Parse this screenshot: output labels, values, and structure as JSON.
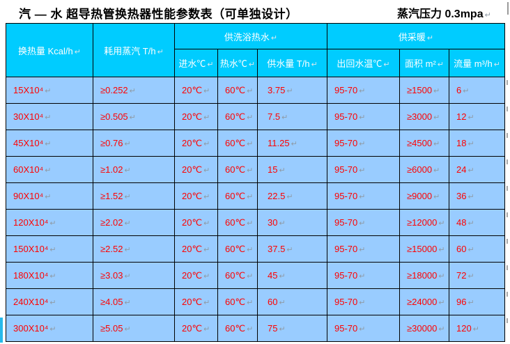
{
  "page": {
    "title_left": "汽 — 水 超导热管换热器性能参数表（可单独设计）",
    "title_right": "蒸汽压力 0.3mpa"
  },
  "marks": {
    "paragraph": "↵"
  },
  "colors": {
    "header_bg": "#00CCFF",
    "row_bg": "#99CCFF",
    "data_text": "#FF0000",
    "header_text": "#FFFFFF",
    "border": "#000000",
    "title_text": "#000000"
  },
  "table": {
    "header": {
      "heat": "换热量 Kcal/h",
      "steam": "耗用蒸汽 T/h",
      "group_bath": "供洗浴热水",
      "group_heating": "供采暖",
      "sub": [
        "进水℃",
        "热水℃",
        "供水量 T/h",
        "出回水温℃",
        "面积 m²",
        "流量 m³/h"
      ]
    },
    "rows": [
      {
        "heat": "15X10⁴",
        "steam": "≥0.252",
        "inlet": "20℃",
        "hot": "60℃",
        "supply": "3.75",
        "return_temp": "95-70",
        "area": "≥1500",
        "flow": "6"
      },
      {
        "heat": "30X10⁴",
        "steam": "≥0.505",
        "inlet": "20℃",
        "hot": "60℃",
        "supply": "7.5",
        "return_temp": "95-70",
        "area": "≥3000",
        "flow": "12"
      },
      {
        "heat": "45X10⁴",
        "steam": "≥0.76",
        "inlet": "20℃",
        "hot": "60℃",
        "supply": "11.25",
        "return_temp": "95-70",
        "area": "≥4500",
        "flow": "18"
      },
      {
        "heat": "60X10⁴",
        "steam": "≥1.02",
        "inlet": "20℃",
        "hot": "60℃",
        "supply": "15",
        "return_temp": "95-70",
        "area": "≥6000",
        "flow": "24"
      },
      {
        "heat": "90X10⁴",
        "steam": "≥1.52",
        "inlet": "20℃",
        "hot": "60℃",
        "supply": "22.5",
        "return_temp": "95-70",
        "area": "≥9000",
        "flow": "36"
      },
      {
        "heat": "120X10⁴",
        "steam": "≥2.02",
        "inlet": "20℃",
        "hot": "60℃",
        "supply": "30",
        "return_temp": "95-70",
        "area": "≥12000",
        "flow": "48"
      },
      {
        "heat": "150X10⁴",
        "steam": "≥2.52",
        "inlet": "20℃",
        "hot": "60℃",
        "supply": "37.5",
        "return_temp": "95-70",
        "area": "≥15000",
        "flow": "60"
      },
      {
        "heat": "180X10⁴",
        "steam": "≥3.03",
        "inlet": "20℃",
        "hot": "60℃",
        "supply": "45",
        "return_temp": "95-70",
        "area": "≥18000",
        "flow": "72"
      },
      {
        "heat": "240X10⁴",
        "steam": "≥4.05",
        "inlet": "20℃",
        "hot": "60℃",
        "supply": "60",
        "return_temp": "95-70",
        "area": "≥24000",
        "flow": "96"
      },
      {
        "heat": "300X10⁴",
        "steam": "≥5.05",
        "inlet": "20℃",
        "hot": "60℃",
        "supply": "75",
        "return_temp": "95-70",
        "area": "≥30000",
        "flow": "120"
      }
    ]
  }
}
